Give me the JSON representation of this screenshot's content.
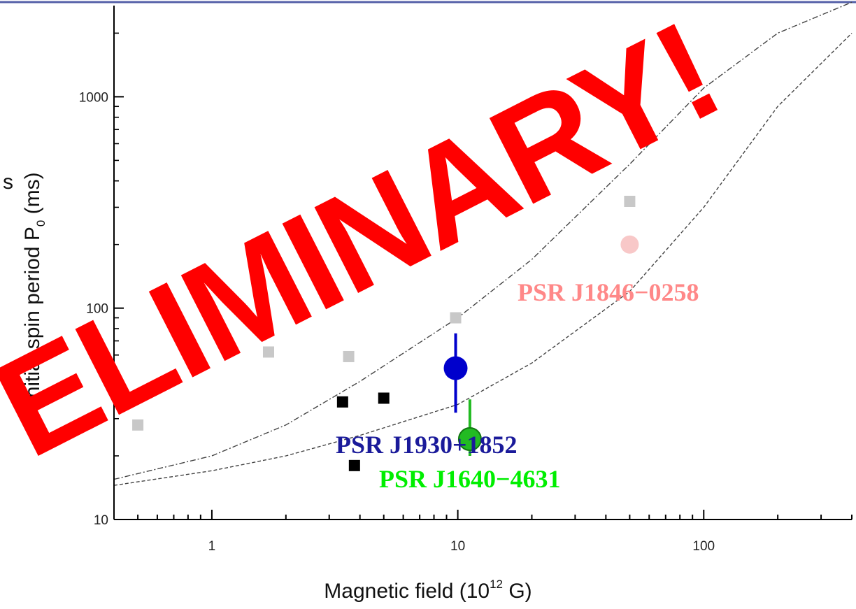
{
  "chart_data": {
    "type": "scatter",
    "xlabel": "Magnetic field (10",
    "xlabel_sup": "12",
    "xlabel_end": " G)",
    "ylabel_pre": "Initial spin period P",
    "ylabel_sub": "0",
    "ylabel_post": " (ms)",
    "x_scale": "log",
    "y_scale": "log",
    "xlim": [
      0.4,
      400
    ],
    "ylim": [
      10,
      2700
    ],
    "x_ticks": [
      {
        "v": 1,
        "label": "1"
      },
      {
        "v": 10,
        "label": "10"
      },
      {
        "v": 100,
        "label": "100"
      }
    ],
    "y_ticks": [
      {
        "v": 10,
        "label": "10"
      },
      {
        "v": 100,
        "label": "100"
      },
      {
        "v": 1000,
        "label": "1000"
      }
    ],
    "series": [
      {
        "marker": "square",
        "color": "#c8c8c8",
        "points": [
          [
            0.5,
            28
          ],
          [
            1.7,
            62
          ],
          [
            3.6,
            59
          ],
          [
            9.8,
            90
          ],
          [
            50,
            320
          ]
        ]
      },
      {
        "marker": "square",
        "color": "#000000",
        "points": [
          [
            3.4,
            36
          ],
          [
            5.0,
            37.5
          ],
          [
            3.8,
            18
          ]
        ]
      }
    ],
    "highlighted": [
      {
        "label": "PSR J1930+1852",
        "color": "#0000cc",
        "label_color": "#1a1a9a",
        "x": 9.8,
        "y": 52,
        "yerr": [
          32,
          76
        ],
        "r": 17
      },
      {
        "label": "PSR J1640−4631",
        "color": "#22bb22",
        "label_color": "#00ee00",
        "x": 11.2,
        "y": 24,
        "yerr": [
          20,
          37
        ],
        "r": 16
      },
      {
        "label": "PSR J1846−0258",
        "color": "#f8c8c8",
        "label_color": "#ff8888",
        "x": 50,
        "y": 200,
        "yerr": null,
        "r": 13
      }
    ],
    "curves": [
      {
        "style": "dash-dot",
        "points": [
          [
            0.4,
            15.5
          ],
          [
            1,
            20
          ],
          [
            2,
            28
          ],
          [
            4,
            45
          ],
          [
            10,
            90
          ],
          [
            20,
            170
          ],
          [
            50,
            480
          ],
          [
            100,
            1100
          ],
          [
            200,
            2000
          ],
          [
            400,
            2800
          ]
        ]
      },
      {
        "style": "dashed",
        "points": [
          [
            0.4,
            14.5
          ],
          [
            1,
            17
          ],
          [
            2,
            20
          ],
          [
            4,
            25
          ],
          [
            10,
            35
          ],
          [
            20,
            55
          ],
          [
            50,
            120
          ],
          [
            100,
            300
          ],
          [
            200,
            900
          ],
          [
            400,
            2000
          ]
        ]
      }
    ]
  },
  "watermark": "ELIMINARY!"
}
